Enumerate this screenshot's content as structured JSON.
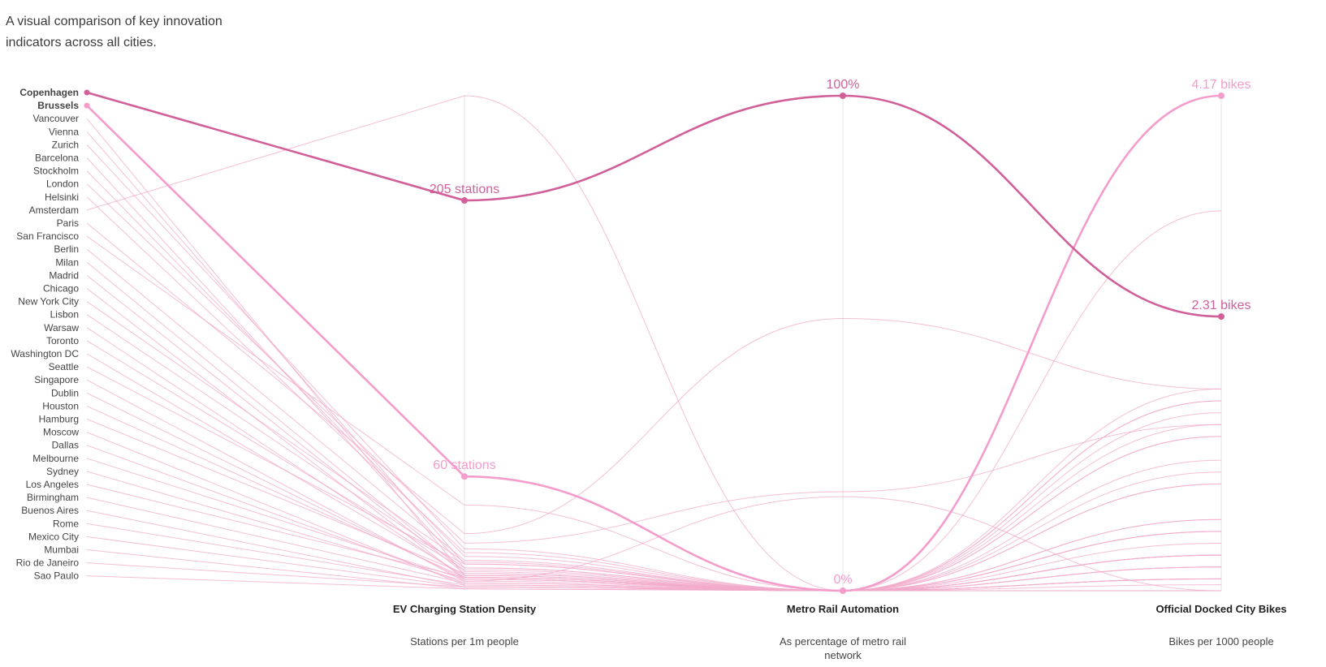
{
  "intro": "A visual comparison of key innovation indicators across all cities.",
  "colors": {
    "highlight_primary": "#d1609a",
    "highlight_secondary": "#f49ccb",
    "background_line": "#f2a9c9",
    "axis_line": "#e4e4e4"
  },
  "chart_data": {
    "type": "line",
    "variant": "parallel-coordinates",
    "title": "",
    "axes": [
      {
        "name": "EV Charging Station Density",
        "subtitle": "Stations per 1m people",
        "min": 0,
        "max": 260
      },
      {
        "name": "Metro Rail Automation",
        "subtitle": "As percentage of metro rail network",
        "min": 0,
        "max": 100
      },
      {
        "name": "Official Docked City Bikes",
        "subtitle": "Bikes per 1000 people",
        "min": 0,
        "max": 4.17
      }
    ],
    "highlighted": [
      "Copenhagen",
      "Brussels"
    ],
    "annotations": [
      {
        "city": "Copenhagen",
        "axis": 0,
        "text": "205 stations"
      },
      {
        "city": "Copenhagen",
        "axis": 1,
        "text": "100%"
      },
      {
        "city": "Copenhagen",
        "axis": 2,
        "text": "2.31 bikes"
      },
      {
        "city": "Brussels",
        "axis": 0,
        "text": "60 stations"
      },
      {
        "city": "Brussels",
        "axis": 1,
        "text": "0%"
      },
      {
        "city": "Brussels",
        "axis": 2,
        "text": "4.17 bikes"
      }
    ],
    "series": [
      {
        "name": "Copenhagen",
        "values": [
          205,
          100,
          2.31
        ]
      },
      {
        "name": "Brussels",
        "values": [
          60,
          0,
          4.17
        ]
      },
      {
        "name": "Vancouver",
        "values": [
          8,
          0,
          0.3
        ]
      },
      {
        "name": "Vienna",
        "values": [
          14,
          0,
          1.0
        ]
      },
      {
        "name": "Zurich",
        "values": [
          22,
          0,
          0.0
        ]
      },
      {
        "name": "Barcelona",
        "values": [
          12,
          0,
          1.3
        ]
      },
      {
        "name": "Stockholm",
        "values": [
          18,
          0,
          0.6
        ]
      },
      {
        "name": "London",
        "values": [
          25,
          20,
          1.4
        ]
      },
      {
        "name": "Helsinki",
        "values": [
          20,
          0,
          1.3
        ]
      },
      {
        "name": "Amsterdam",
        "values": [
          260,
          0,
          0.0
        ]
      },
      {
        "name": "Paris",
        "values": [
          30,
          55,
          1.7
        ]
      },
      {
        "name": "San Francisco",
        "values": [
          45,
          0,
          0.5
        ]
      },
      {
        "name": "Berlin",
        "values": [
          16,
          0,
          1.1
        ]
      },
      {
        "name": "Milan",
        "values": [
          10,
          0,
          1.6
        ]
      },
      {
        "name": "Madrid",
        "values": [
          9,
          0,
          0.9
        ]
      },
      {
        "name": "Chicago",
        "values": [
          6,
          0,
          0.5
        ]
      },
      {
        "name": "New York City",
        "values": [
          15,
          0,
          0.9
        ]
      },
      {
        "name": "Lisbon",
        "values": [
          12,
          0,
          0.5
        ]
      },
      {
        "name": "Warsaw",
        "values": [
          7,
          0,
          3.2
        ]
      },
      {
        "name": "Toronto",
        "values": [
          11,
          0,
          0.4
        ]
      },
      {
        "name": "Washington DC",
        "values": [
          8,
          0,
          0.3
        ]
      },
      {
        "name": "Seattle",
        "values": [
          14,
          0,
          0.2
        ]
      },
      {
        "name": "Singapore",
        "values": [
          5,
          19,
          0.0
        ]
      },
      {
        "name": "Dublin",
        "values": [
          6,
          0,
          1.4
        ]
      },
      {
        "name": "Houston",
        "values": [
          7,
          0,
          0.1
        ]
      },
      {
        "name": "Hamburg",
        "values": [
          9,
          0,
          1.7
        ]
      },
      {
        "name": "Moscow",
        "values": [
          3,
          0,
          0.3
        ]
      },
      {
        "name": "Dallas",
        "values": [
          4,
          0,
          0.1
        ]
      },
      {
        "name": "Melbourne",
        "values": [
          6,
          0,
          0.2
        ]
      },
      {
        "name": "Sydney",
        "values": [
          5,
          0,
          0.05
        ]
      },
      {
        "name": "Los Angeles",
        "values": [
          7,
          0,
          0.1
        ]
      },
      {
        "name": "Birmingham",
        "values": [
          4,
          0,
          0.3
        ]
      },
      {
        "name": "Buenos Aires",
        "values": [
          2,
          0,
          1.5
        ]
      },
      {
        "name": "Rome",
        "values": [
          3,
          0,
          0.2
        ]
      },
      {
        "name": "Mexico City",
        "values": [
          2,
          0,
          0.6
        ]
      },
      {
        "name": "Mumbai",
        "values": [
          1,
          0,
          0.0
        ]
      },
      {
        "name": "Rio de Janeiro",
        "values": [
          2,
          0,
          1.6
        ]
      },
      {
        "name": "Sao Paulo",
        "values": [
          1,
          0,
          0.1
        ]
      }
    ]
  }
}
